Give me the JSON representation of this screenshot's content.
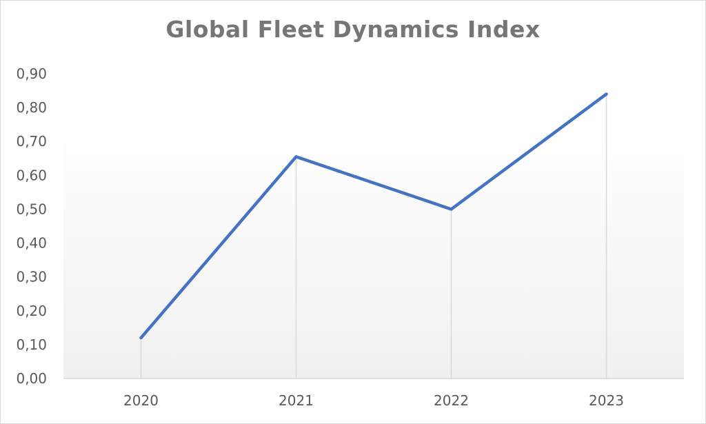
{
  "chart_data": {
    "type": "line",
    "title": "Global Fleet Dynamics Index",
    "categories": [
      "2020",
      "2021",
      "2022",
      "2023"
    ],
    "series": [
      {
        "values": [
          0.12,
          0.655,
          0.5,
          0.84
        ]
      }
    ],
    "ylim": [
      0,
      0.9
    ],
    "yticks": [
      0.0,
      0.1,
      0.2,
      0.3,
      0.4,
      0.5,
      0.6,
      0.7,
      0.8,
      0.9
    ],
    "ytick_labels": [
      "0,00",
      "0,10",
      "0,20",
      "0,30",
      "0,40",
      "0,50",
      "0,60",
      "0,70",
      "0,80",
      "0,90"
    ],
    "drop_lines": true,
    "grid": false,
    "colors": {
      "line": "#4472C4",
      "drop_line": "#d9d9d9",
      "axis": "#d9d9d9"
    }
  }
}
